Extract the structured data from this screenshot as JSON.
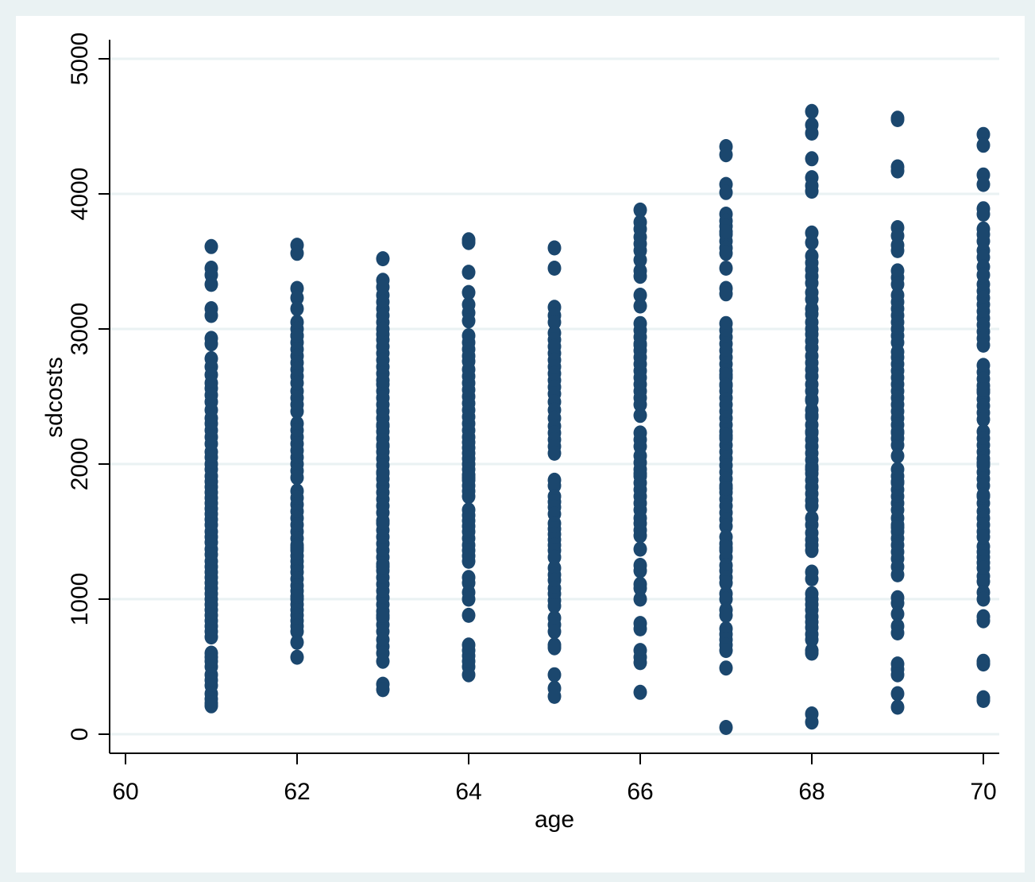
{
  "chart_data": {
    "type": "scatter",
    "title": "",
    "xlabel": "age",
    "ylabel": "sdcosts",
    "xlim": [
      60,
      70
    ],
    "ylim": [
      0,
      5000
    ],
    "x_ticks": [
      "60",
      "62",
      "64",
      "66",
      "68",
      "70"
    ],
    "y_ticks": [
      "0",
      "1000",
      "2000",
      "3000",
      "4000",
      "5000"
    ],
    "grid": "horizontal",
    "colors": {
      "marker": "#1b476e",
      "outer_background": "#eaf2f3",
      "plot_background": "#ffffff",
      "gridline": "#eaf2f3",
      "axis": "#000000"
    },
    "series": [
      {
        "x": [
          61,
          61,
          61,
          61,
          61,
          61,
          61,
          61,
          61,
          61,
          61,
          61,
          61,
          61,
          61,
          61,
          61,
          61,
          61,
          61,
          61,
          61,
          61,
          61,
          61,
          61,
          61,
          61,
          61,
          61,
          61,
          61,
          61,
          61,
          61,
          61,
          61,
          61,
          61,
          61,
          61,
          61,
          61,
          61,
          61,
          61,
          61,
          61,
          61,
          61,
          61,
          61,
          61,
          61,
          61,
          61,
          61,
          61,
          61,
          61,
          61,
          61,
          61,
          61,
          61,
          61,
          62,
          62,
          62,
          62,
          62,
          62,
          62,
          62,
          62,
          62,
          62,
          62,
          62,
          62,
          62,
          62,
          62,
          62,
          62,
          62,
          62,
          62,
          62,
          62,
          62,
          62,
          62,
          62,
          62,
          62,
          62,
          62,
          62,
          62,
          62,
          62,
          62,
          62,
          62,
          62,
          62,
          62,
          62,
          62,
          62,
          62,
          62,
          62,
          62,
          62,
          62,
          62,
          62,
          62,
          62,
          62,
          62,
          63,
          63,
          63,
          63,
          63,
          63,
          63,
          63,
          63,
          63,
          63,
          63,
          63,
          63,
          63,
          63,
          63,
          63,
          63,
          63,
          63,
          63,
          63,
          63,
          63,
          63,
          63,
          63,
          63,
          63,
          63,
          63,
          63,
          63,
          63,
          63,
          63,
          63,
          63,
          63,
          63,
          63,
          63,
          63,
          63,
          63,
          63,
          63,
          63,
          63,
          63,
          63,
          63,
          63,
          63,
          63,
          63,
          63,
          63,
          63,
          63,
          63,
          63,
          63,
          63,
          63,
          64,
          64,
          64,
          64,
          64,
          64,
          64,
          64,
          64,
          64,
          64,
          64,
          64,
          64,
          64,
          64,
          64,
          64,
          64,
          64,
          64,
          64,
          64,
          64,
          64,
          64,
          64,
          64,
          64,
          64,
          64,
          64,
          64,
          64,
          64,
          64,
          64,
          64,
          64,
          64,
          64,
          64,
          64,
          64,
          64,
          64,
          64,
          64,
          64,
          64,
          64,
          64,
          64,
          64,
          64,
          64,
          65,
          65,
          65,
          65,
          65,
          65,
          65,
          65,
          65,
          65,
          65,
          65,
          65,
          65,
          65,
          65,
          65,
          65,
          65,
          65,
          65,
          65,
          65,
          65,
          65,
          65,
          65,
          65,
          65,
          65,
          65,
          65,
          65,
          65,
          65,
          65,
          65,
          65,
          65,
          65,
          65,
          65,
          65,
          65,
          65,
          65,
          65,
          65,
          65,
          65,
          65,
          66,
          66,
          66,
          66,
          66,
          66,
          66,
          66,
          66,
          66,
          66,
          66,
          66,
          66,
          66,
          66,
          66,
          66,
          66,
          66,
          66,
          66,
          66,
          66,
          66,
          66,
          66,
          66,
          66,
          66,
          66,
          66,
          66,
          66,
          66,
          66,
          66,
          66,
          66,
          66,
          66,
          66,
          66,
          66,
          66,
          66,
          66,
          66,
          66,
          66,
          66,
          66,
          66,
          66,
          66,
          67,
          67,
          67,
          67,
          67,
          67,
          67,
          67,
          67,
          67,
          67,
          67,
          67,
          67,
          67,
          67,
          67,
          67,
          67,
          67,
          67,
          67,
          67,
          67,
          67,
          67,
          67,
          67,
          67,
          67,
          67,
          67,
          67,
          67,
          67,
          67,
          67,
          67,
          67,
          67,
          67,
          67,
          67,
          67,
          67,
          67,
          67,
          67,
          67,
          67,
          67,
          67,
          67,
          67,
          67,
          67,
          67,
          67,
          67,
          67,
          67,
          67,
          67,
          67,
          67,
          67,
          67,
          67,
          67,
          67,
          68,
          68,
          68,
          68,
          68,
          68,
          68,
          68,
          68,
          68,
          68,
          68,
          68,
          68,
          68,
          68,
          68,
          68,
          68,
          68,
          68,
          68,
          68,
          68,
          68,
          68,
          68,
          68,
          68,
          68,
          68,
          68,
          68,
          68,
          68,
          68,
          68,
          68,
          68,
          68,
          68,
          68,
          68,
          68,
          68,
          68,
          68,
          68,
          68,
          68,
          68,
          68,
          68,
          68,
          68,
          68,
          68,
          68,
          68,
          68,
          68,
          68,
          68,
          68,
          68,
          68,
          68,
          68,
          68,
          68,
          69,
          69,
          69,
          69,
          69,
          69,
          69,
          69,
          69,
          69,
          69,
          69,
          69,
          69,
          69,
          69,
          69,
          69,
          69,
          69,
          69,
          69,
          69,
          69,
          69,
          69,
          69,
          69,
          69,
          69,
          69,
          69,
          69,
          69,
          69,
          69,
          69,
          69,
          69,
          69,
          69,
          69,
          69,
          69,
          69,
          69,
          69,
          69,
          69,
          69,
          69,
          69,
          69,
          69,
          69,
          69,
          69,
          69,
          69,
          69,
          69,
          69,
          69,
          69,
          70,
          70,
          70,
          70,
          70,
          70,
          70,
          70,
          70,
          70,
          70,
          70,
          70,
          70,
          70,
          70,
          70,
          70,
          70,
          70,
          70,
          70,
          70,
          70,
          70,
          70,
          70,
          70,
          70,
          70,
          70,
          70,
          70,
          70,
          70,
          70,
          70,
          70,
          70,
          70,
          70,
          70,
          70,
          70,
          70,
          70,
          70,
          70,
          70,
          70,
          70,
          70,
          70,
          70,
          70,
          70,
          70,
          70,
          70,
          70,
          70,
          70,
          70,
          70,
          70,
          70
        ],
        "y": [
          3610,
          3450,
          3400,
          3330,
          3150,
          3100,
          2930,
          2890,
          2780,
          2720,
          2660,
          2600,
          2560,
          2510,
          2460,
          2400,
          2340,
          2300,
          2250,
          2200,
          2150,
          2090,
          2050,
          2000,
          1960,
          1910,
          1870,
          1830,
          1790,
          1750,
          1710,
          1670,
          1630,
          1590,
          1550,
          1500,
          1460,
          1420,
          1370,
          1330,
          1280,
          1240,
          1200,
          1160,
          1120,
          1080,
          1040,
          1000,
          960,
          920,
          880,
          840,
          800,
          760,
          720,
          600,
          570,
          540,
          500,
          440,
          400,
          360,
          300,
          260,
          230,
          210,
          3620,
          3560,
          3300,
          3230,
          3150,
          3050,
          3000,
          2950,
          2900,
          2850,
          2800,
          2750,
          2700,
          2650,
          2540,
          2490,
          2440,
          2390,
          2300,
          2250,
          2200,
          2150,
          2050,
          2000,
          1950,
          1800,
          1750,
          1700,
          1650,
          1600,
          1550,
          1500,
          1450,
          1400,
          1360,
          1320,
          1280,
          1240,
          1200,
          1150,
          1100,
          1060,
          1000,
          960,
          920,
          880,
          840,
          800,
          760,
          680,
          570,
          2600,
          2100,
          1900,
          1380,
          1020,
          2950,
          3520,
          3360,
          3310,
          3250,
          3200,
          3150,
          3100,
          3050,
          2960,
          2920,
          2870,
          2820,
          2770,
          2720,
          2670,
          2590,
          2540,
          2490,
          2440,
          2390,
          2340,
          2290,
          2240,
          2190,
          2140,
          2090,
          2040,
          1990,
          1940,
          1890,
          1840,
          1790,
          1740,
          1690,
          1640,
          1560,
          1510,
          1460,
          1410,
          1360,
          1310,
          1260,
          1210,
          1160,
          1110,
          1060,
          1010,
          960,
          910,
          860,
          810,
          760,
          700,
          650,
          600,
          540,
          370,
          330,
          2620,
          2280,
          1930,
          1580,
          1240,
          880,
          3000,
          2130,
          3660,
          3640,
          3420,
          3270,
          3180,
          3120,
          3060,
          2950,
          2900,
          2850,
          2800,
          2760,
          2650,
          2600,
          2550,
          2500,
          2450,
          2400,
          2350,
          2300,
          2250,
          2200,
          2160,
          2120,
          2080,
          2040,
          2000,
          1960,
          1920,
          1880,
          1840,
          1800,
          1760,
          1660,
          1620,
          1580,
          1540,
          1500,
          1450,
          1400,
          1360,
          1320,
          1280,
          1160,
          1120,
          1050,
          1000,
          880,
          660,
          620,
          580,
          540,
          500,
          440,
          2700,
          1900,
          3600,
          3450,
          3160,
          3100,
          3050,
          2970,
          2920,
          2870,
          2820,
          2770,
          2720,
          2670,
          2620,
          2570,
          2520,
          2460,
          2400,
          2340,
          2280,
          2230,
          2180,
          2130,
          2080,
          1880,
          1840,
          1760,
          1720,
          1680,
          1630,
          1560,
          1520,
          1480,
          1440,
          1400,
          1360,
          1310,
          1230,
          1180,
          1140,
          1080,
          1040,
          990,
          950,
          860,
          810,
          760,
          660,
          640,
          440,
          340,
          280,
          3880,
          3790,
          3740,
          3680,
          3630,
          3580,
          3430,
          3390,
          3250,
          3170,
          3040,
          2990,
          2940,
          2890,
          2840,
          2790,
          2740,
          2690,
          2640,
          2590,
          2540,
          2490,
          2440,
          2360,
          2230,
          2180,
          2130,
          2060,
          2010,
          1960,
          1910,
          1860,
          1810,
          1760,
          1710,
          1660,
          1560,
          1510,
          1470,
          1370,
          1250,
          1210,
          1110,
          1000,
          820,
          780,
          620,
          570,
          530,
          310,
          3510,
          2880,
          1930,
          1600,
          1080,
          4350,
          4290,
          4070,
          4010,
          3850,
          3800,
          3760,
          3700,
          3650,
          3600,
          3560,
          3450,
          3300,
          3260,
          3040,
          2990,
          2940,
          2890,
          2840,
          2790,
          2740,
          2690,
          2640,
          2590,
          2540,
          2490,
          2440,
          2390,
          2340,
          2290,
          2240,
          2190,
          2140,
          2090,
          2040,
          1990,
          1940,
          1890,
          1840,
          1790,
          1740,
          1690,
          1640,
          1590,
          1540,
          1460,
          1410,
          1360,
          1310,
          1250,
          1210,
          1160,
          1120,
          1040,
          1000,
          920,
          880,
          780,
          740,
          700,
          660,
          620,
          490,
          50,
          3720,
          2210,
          2660,
          1820,
          1380,
          2580,
          4610,
          4510,
          4450,
          4260,
          4120,
          4060,
          4020,
          3710,
          3640,
          3540,
          3490,
          3440,
          3390,
          3340,
          3270,
          3220,
          3150,
          3110,
          3050,
          2960,
          2910,
          2860,
          2800,
          2750,
          2700,
          2650,
          2590,
          2540,
          2480,
          2400,
          2350,
          2290,
          2230,
          2180,
          2130,
          2080,
          2030,
          1980,
          1930,
          1880,
          1830,
          1780,
          1730,
          1690,
          1550,
          1490,
          1440,
          1400,
          1360,
          1200,
          1150,
          1040,
          1000,
          960,
          920,
          870,
          830,
          790,
          740,
          700,
          620,
          600,
          150,
          90,
          3000,
          2470,
          2360,
          2240,
          1960,
          1600,
          4560,
          4550,
          4200,
          4170,
          3750,
          3690,
          3620,
          3580,
          3430,
          3380,
          3330,
          3250,
          3200,
          3150,
          3100,
          3050,
          3000,
          2950,
          2900,
          2830,
          2790,
          2740,
          2690,
          2640,
          2590,
          2540,
          2490,
          2440,
          2390,
          2340,
          2290,
          2240,
          2190,
          2140,
          2060,
          1960,
          1910,
          1860,
          1810,
          1760,
          1710,
          1660,
          1600,
          1550,
          1500,
          1450,
          1400,
          1350,
          1300,
          1240,
          1180,
          1010,
          970,
          890,
          800,
          750,
          520,
          480,
          440,
          300,
          200,
          2230,
          1870,
          1530,
          4440,
          4360,
          4140,
          4070,
          3890,
          3850,
          3740,
          3700,
          3650,
          3580,
          3530,
          3460,
          3330,
          3280,
          3230,
          3180,
          3130,
          3080,
          3030,
          2980,
          2930,
          2880,
          2730,
          2680,
          2630,
          2580,
          2530,
          2480,
          2430,
          2380,
          2330,
          2240,
          2190,
          2140,
          2090,
          2040,
          1990,
          1940,
          1890,
          1840,
          1760,
          1710,
          1650,
          1600,
          1550,
          1500,
          1390,
          1350,
          1310,
          1270,
          1230,
          1170,
          1130,
          1050,
          1000,
          870,
          840,
          540,
          520,
          270,
          250,
          2550,
          3400,
          2010,
          1460,
          1770
        ]
      }
    ]
  }
}
